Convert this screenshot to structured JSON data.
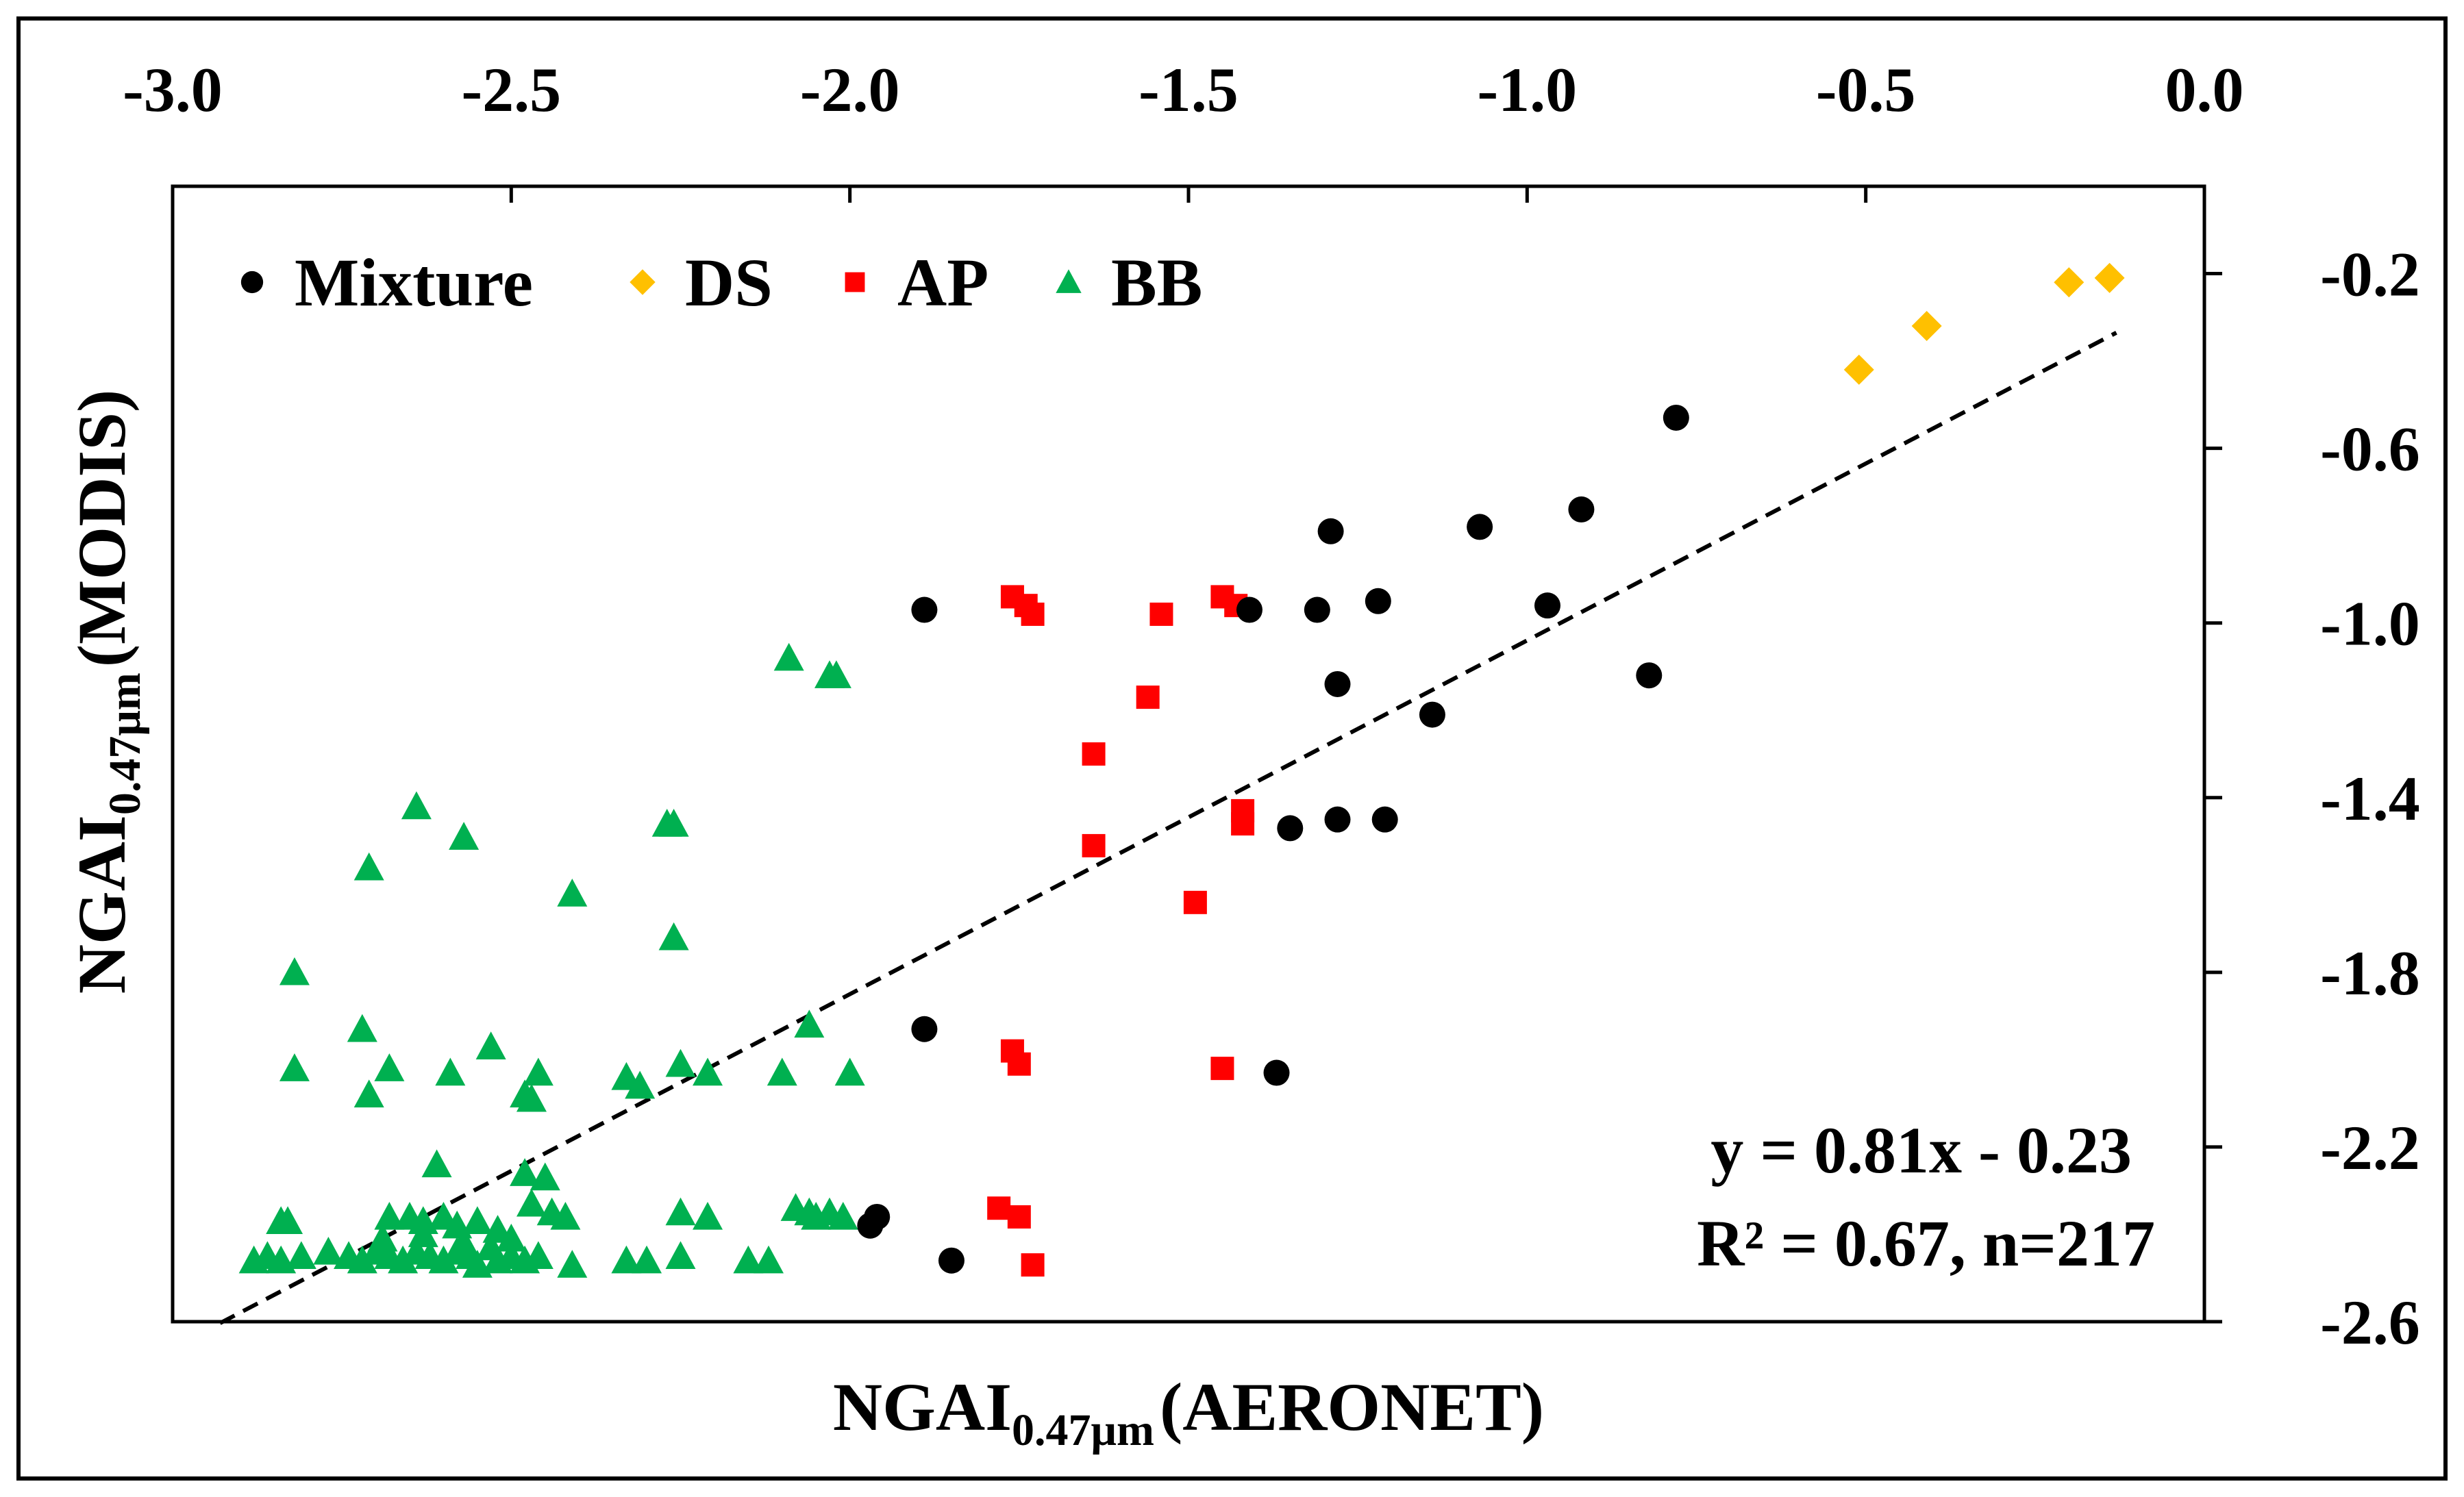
{
  "chart_data": {
    "type": "scatter",
    "title": "",
    "xlabel": {
      "main": "NGAI",
      "sub": "0.47μm",
      "suffix": "(AERONET)"
    },
    "ylabel": {
      "main": "NGAI",
      "sub": "0.47μm",
      "suffix": "(MODIS)"
    },
    "xlim": [
      -3.0,
      0.0
    ],
    "ylim": [
      -2.6,
      0.0
    ],
    "xticks": [
      -3.0,
      -2.5,
      -2.0,
      -1.5,
      -1.0,
      -0.5,
      0.0
    ],
    "xtick_labels": [
      "-3.0",
      "-2.5",
      "-2.0",
      "-1.5",
      "-1.0",
      "-0.5",
      "0.0"
    ],
    "yticks": [
      -0.2,
      -0.6,
      -1.0,
      -1.4,
      -1.8,
      -2.2,
      -2.6
    ],
    "ytick_labels": [
      "-0.2",
      "-0.6",
      "-1.0",
      "-1.4",
      "-1.8",
      "-2.2",
      "-2.6"
    ],
    "x_axis_position": "top",
    "y_axis_position": "right",
    "grid": false,
    "legend_position": "top-left",
    "series": [
      {
        "name": "Mixture",
        "marker": "circle",
        "color": "#000000",
        "points": [
          [
            -1.89,
            -0.97
          ],
          [
            -1.41,
            -0.97
          ],
          [
            -1.31,
            -0.97
          ],
          [
            -1.22,
            -0.95
          ],
          [
            -1.29,
            -0.79
          ],
          [
            -1.07,
            -0.78
          ],
          [
            -0.92,
            -0.74
          ],
          [
            -0.78,
            -0.53
          ],
          [
            -0.97,
            -0.96
          ],
          [
            -1.28,
            -1.14
          ],
          [
            -1.14,
            -1.21
          ],
          [
            -0.82,
            -1.12
          ],
          [
            -1.35,
            -1.47
          ],
          [
            -1.28,
            -1.45
          ],
          [
            -1.21,
            -1.45
          ],
          [
            -1.89,
            -1.93
          ],
          [
            -1.37,
            -2.03
          ],
          [
            -1.96,
            -2.36
          ],
          [
            -1.97,
            -2.38
          ],
          [
            -1.85,
            -2.46
          ]
        ]
      },
      {
        "name": "DS",
        "marker": "diamond",
        "color": "#ffc000",
        "points": [
          [
            -0.51,
            -0.42
          ],
          [
            -0.41,
            -0.32
          ],
          [
            -0.2,
            -0.22
          ],
          [
            -0.14,
            -0.21
          ]
        ]
      },
      {
        "name": "AP",
        "marker": "square",
        "color": "#ff0000",
        "points": [
          [
            -1.76,
            -0.94
          ],
          [
            -1.74,
            -0.96
          ],
          [
            -1.73,
            -0.98
          ],
          [
            -1.54,
            -0.98
          ],
          [
            -1.45,
            -0.94
          ],
          [
            -1.43,
            -0.96
          ],
          [
            -1.56,
            -1.17
          ],
          [
            -1.64,
            -1.3
          ],
          [
            -1.64,
            -1.51
          ],
          [
            -1.42,
            -1.43
          ],
          [
            -1.42,
            -1.46
          ],
          [
            -1.49,
            -1.64
          ],
          [
            -1.76,
            -1.98
          ],
          [
            -1.75,
            -2.01
          ],
          [
            -1.45,
            -2.02
          ],
          [
            -1.78,
            -2.34
          ],
          [
            -1.75,
            -2.36
          ],
          [
            -1.73,
            -2.47
          ]
        ]
      },
      {
        "name": "BB",
        "marker": "triangle",
        "color": "#00b050",
        "points": [
          [
            -2.09,
            -1.08
          ],
          [
            -2.03,
            -1.12
          ],
          [
            -2.02,
            -1.12
          ],
          [
            -2.64,
            -1.42
          ],
          [
            -2.57,
            -1.49
          ],
          [
            -2.27,
            -1.46
          ],
          [
            -2.26,
            -1.46
          ],
          [
            -2.71,
            -1.56
          ],
          [
            -2.41,
            -1.62
          ],
          [
            -2.26,
            -1.72
          ],
          [
            -2.82,
            -1.8
          ],
          [
            -2.72,
            -1.93
          ],
          [
            -2.53,
            -1.97
          ],
          [
            -2.06,
            -1.92
          ],
          [
            -2.82,
            -2.02
          ],
          [
            -2.68,
            -2.02
          ],
          [
            -2.59,
            -2.03
          ],
          [
            -2.46,
            -2.03
          ],
          [
            -2.48,
            -2.08
          ],
          [
            -2.47,
            -2.09
          ],
          [
            -2.33,
            -2.04
          ],
          [
            -2.31,
            -2.06
          ],
          [
            -2.25,
            -2.01
          ],
          [
            -2.21,
            -2.03
          ],
          [
            -2.1,
            -2.03
          ],
          [
            -2.0,
            -2.03
          ],
          [
            -2.71,
            -2.08
          ],
          [
            -2.61,
            -2.24
          ],
          [
            -2.48,
            -2.26
          ],
          [
            -2.45,
            -2.27
          ],
          [
            -2.47,
            -2.33
          ],
          [
            -2.44,
            -2.35
          ],
          [
            -2.42,
            -2.36
          ],
          [
            -2.25,
            -2.35
          ],
          [
            -2.21,
            -2.36
          ],
          [
            -2.08,
            -2.34
          ],
          [
            -2.06,
            -2.35
          ],
          [
            -2.05,
            -2.36
          ],
          [
            -2.03,
            -2.35
          ],
          [
            -2.01,
            -2.36
          ],
          [
            -2.84,
            -2.37
          ],
          [
            -2.83,
            -2.37
          ],
          [
            -2.68,
            -2.36
          ],
          [
            -2.65,
            -2.36
          ],
          [
            -2.63,
            -2.37
          ],
          [
            -2.6,
            -2.36
          ],
          [
            -2.58,
            -2.38
          ],
          [
            -2.55,
            -2.37
          ],
          [
            -2.52,
            -2.39
          ],
          [
            -2.5,
            -2.41
          ],
          [
            -2.88,
            -2.46
          ],
          [
            -2.86,
            -2.45
          ],
          [
            -2.84,
            -2.46
          ],
          [
            -2.81,
            -2.45
          ],
          [
            -2.77,
            -2.44
          ],
          [
            -2.74,
            -2.45
          ],
          [
            -2.72,
            -2.46
          ],
          [
            -2.7,
            -2.44
          ],
          [
            -2.68,
            -2.45
          ],
          [
            -2.66,
            -2.46
          ],
          [
            -2.64,
            -2.44
          ],
          [
            -2.62,
            -2.45
          ],
          [
            -2.6,
            -2.46
          ],
          [
            -2.58,
            -2.44
          ],
          [
            -2.56,
            -2.45
          ],
          [
            -2.55,
            -2.47
          ],
          [
            -2.52,
            -2.46
          ],
          [
            -2.5,
            -2.45
          ],
          [
            -2.48,
            -2.46
          ],
          [
            -2.46,
            -2.45
          ],
          [
            -2.41,
            -2.47
          ],
          [
            -2.33,
            -2.46
          ],
          [
            -2.3,
            -2.46
          ],
          [
            -2.25,
            -2.45
          ],
          [
            -2.15,
            -2.46
          ],
          [
            -2.12,
            -2.46
          ],
          [
            -2.69,
            -2.41
          ],
          [
            -2.63,
            -2.4
          ],
          [
            -2.57,
            -2.42
          ],
          [
            -2.53,
            -2.43
          ]
        ]
      }
    ],
    "fit_line": {
      "slope": 0.81,
      "intercept": -0.23,
      "style": "dashed",
      "x_range": [
        -2.93,
        -0.13
      ]
    },
    "annotations": [
      "y = 0.81x - 0.23",
      "R² = 0.67, n=217"
    ]
  }
}
